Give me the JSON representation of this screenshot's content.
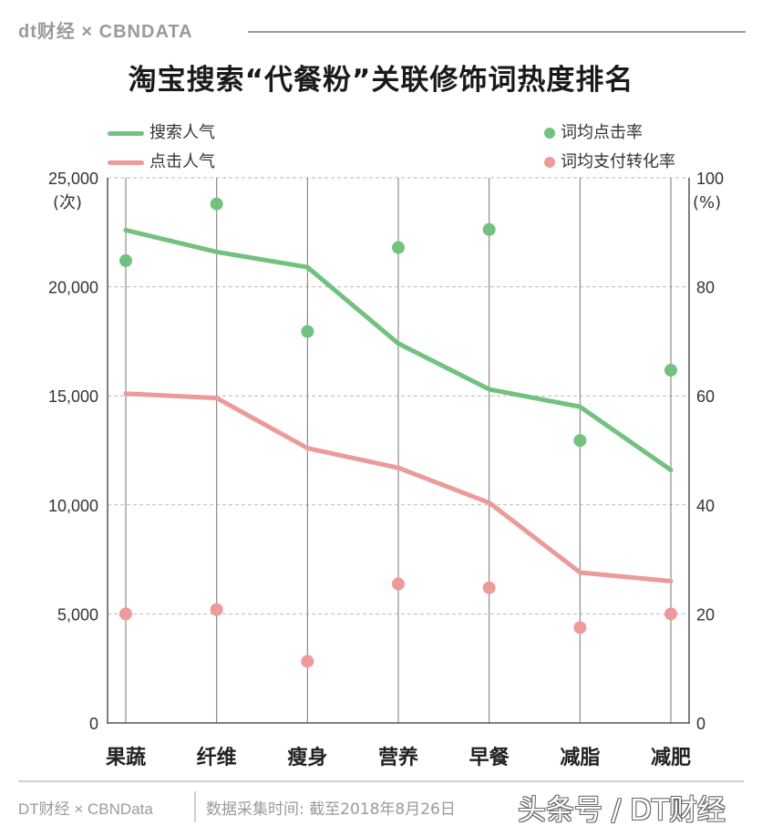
{
  "header": {
    "brand": "dt财经 × CBNDATA",
    "title": "淘宝搜索“代餐粉”关联修饰词热度排名"
  },
  "legend": {
    "search_popularity": "搜索人气",
    "click_popularity": "点击人气",
    "ctr": "词均点击率",
    "conversion": "词均支付转化率"
  },
  "colors": {
    "green": "#72c17f",
    "pink": "#ec9a9a",
    "grid": "#bbbbbb",
    "axis": "#555555"
  },
  "chart_data": {
    "type": "line",
    "categories": [
      "果蔬",
      "纤维",
      "瘦身",
      "营养",
      "早餐",
      "减脂",
      "减肥"
    ],
    "y_left": {
      "label": "(次)",
      "ylim": [
        0,
        25000
      ],
      "ticks": [
        "0",
        "5,000",
        "10,000",
        "15,000",
        "20,000",
        "25,000"
      ],
      "tick_values": [
        0,
        5000,
        10000,
        15000,
        20000,
        25000
      ]
    },
    "y_right": {
      "label": "(%)",
      "ylim": [
        0,
        100
      ],
      "ticks": [
        "0",
        "20",
        "40",
        "60",
        "80",
        "100"
      ],
      "tick_values": [
        0,
        20,
        40,
        60,
        80,
        100
      ]
    },
    "series": [
      {
        "name": "搜索人气",
        "type": "line",
        "axis": "left",
        "color": "#72c17f",
        "values": [
          22600,
          21600,
          20900,
          17400,
          15300,
          14500,
          11600
        ]
      },
      {
        "name": "点击人气",
        "type": "line",
        "axis": "left",
        "color": "#ec9a9a",
        "values": [
          15100,
          14900,
          12600,
          11700,
          10100,
          6900,
          6500
        ]
      },
      {
        "name": "词均点击率",
        "type": "scatter",
        "axis": "right",
        "color": "#72c17f",
        "values": [
          84.8,
          95.2,
          71.8,
          87.2,
          90.5,
          51.8,
          64.7
        ]
      },
      {
        "name": "词均支付转化率",
        "type": "scatter",
        "axis": "right",
        "color": "#ec9a9a",
        "values": [
          20,
          20.8,
          11.3,
          25.5,
          24.8,
          17.5,
          20
        ]
      }
    ],
    "grid": true,
    "legend_position": "top"
  },
  "footer": {
    "source": "DT财经 × CBNData",
    "note": "数据采集时间: 截至2018年8月26日",
    "watermark": "头条号 / DT财经"
  }
}
